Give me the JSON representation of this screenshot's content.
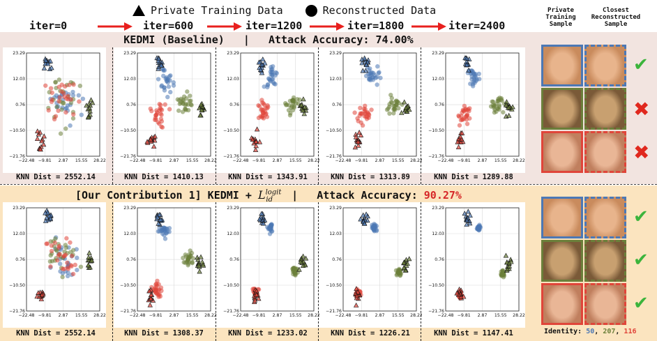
{
  "legend": {
    "private_label": "Private Training Data",
    "recon_label": "Reconstructed Data"
  },
  "iters": [
    "iter=0",
    "iter=600",
    "iter=1200",
    "iter=1800",
    "iter=2400"
  ],
  "right_headers": {
    "private": "Private\nTraining\nSample",
    "closest": "Closest\nReconstructed\nSample"
  },
  "row1": {
    "title_left": "KEDMI (Baseline)",
    "divider": "|",
    "title_right": "Attack Accuracy: 74.00%",
    "knn": [
      "KNN Dist = 2552.14",
      "KNN Dist = 1410.13",
      "KNN Dist = 1343.91",
      "KNN Dist = 1313.89",
      "KNN Dist = 1289.88"
    ],
    "marks": [
      "check",
      "cross",
      "cross"
    ]
  },
  "row2": {
    "title_left": "[Our Contribution 1] KEDMI + ",
    "sym_base": "L",
    "sym_sup": "logit",
    "sym_sub": "id",
    "divider": "|",
    "title_right_label": "Attack Accuracy: ",
    "title_right_value": "90.27%",
    "knn": [
      "KNN Dist = 2552.14",
      "KNN Dist = 1308.37",
      "KNN Dist = 1233.02",
      "KNN Dist = 1226.21",
      "KNN Dist = 1147.41"
    ],
    "marks": [
      "check",
      "check",
      "check"
    ]
  },
  "identity": {
    "label": "Identity: ",
    "ids": [
      "50",
      "207",
      "116"
    ],
    "colors": [
      "#4c78b5",
      "#6b7f3a",
      "#e0453a"
    ]
  },
  "chart_data": {
    "type": "scatter",
    "x_ticks": [
      -22.48,
      -9.81,
      2.87,
      15.55,
      28.22
    ],
    "y_ticks": [
      23.29,
      12.03,
      0.76,
      -10.5,
      -21.76
    ],
    "xlim": [
      -22.48,
      28.22
    ],
    "ylim": [
      -21.76,
      23.29
    ],
    "grid": true,
    "private_clusters": [
      {
        "identity": "50",
        "color": "#4c78b5",
        "center": [
          -7.5,
          18.5
        ]
      },
      {
        "identity": "207",
        "color": "#6b7f3a",
        "center": [
          21.0,
          -1.0
        ]
      },
      {
        "identity": "116",
        "color": "#e0453a",
        "center": [
          -12.5,
          -15.0
        ]
      }
    ],
    "panels": [
      {
        "row": 1,
        "iter": 0,
        "recon_centers": [
          [
            2.87,
            2.0
          ],
          [
            2.87,
            2.0
          ],
          [
            2.87,
            2.0
          ]
        ],
        "spread": 9.0
      },
      {
        "row": 1,
        "iter": 600,
        "recon_centers": [
          [
            -2.5,
            10.5
          ],
          [
            10.5,
            0.76
          ],
          [
            -7.5,
            -3.0
          ]
        ],
        "spread": 5.0
      },
      {
        "row": 1,
        "iter": 1200,
        "recon_centers": [
          [
            -0.5,
            12.0
          ],
          [
            13.5,
            1.5
          ],
          [
            -7.5,
            -2.5
          ]
        ],
        "spread": 4.5
      },
      {
        "row": 1,
        "iter": 1800,
        "recon_centers": [
          [
            -2.0,
            13.5
          ],
          [
            13.0,
            1.0
          ],
          [
            -8.0,
            -3.5
          ]
        ],
        "spread": 4.5
      },
      {
        "row": 1,
        "iter": 2400,
        "recon_centers": [
          [
            -4.0,
            14.0
          ],
          [
            13.0,
            1.0
          ],
          [
            -9.0,
            -4.0
          ]
        ],
        "spread": 4.5
      },
      {
        "row": 2,
        "iter": 0,
        "recon_centers": [
          [
            2.87,
            2.0
          ],
          [
            2.87,
            2.0
          ],
          [
            2.87,
            2.0
          ]
        ],
        "spread": 9.0
      },
      {
        "row": 2,
        "iter": 600,
        "recon_centers": [
          [
            -4.0,
            14.0
          ],
          [
            13.0,
            1.0
          ],
          [
            -9.5,
            -12.0
          ]
        ],
        "spread": 3.5
      },
      {
        "row": 2,
        "iter": 1200,
        "recon_centers": [
          [
            -2.0,
            14.5
          ],
          [
            15.0,
            -4.0
          ],
          [
            -12.0,
            -13.5
          ]
        ],
        "spread": 1.8
      },
      {
        "row": 2,
        "iter": 1800,
        "recon_centers": [
          [
            -1.0,
            14.5
          ],
          [
            16.0,
            -5.0
          ],
          [
            -12.0,
            -14.0
          ]
        ],
        "spread": 1.5
      },
      {
        "row": 2,
        "iter": 2400,
        "recon_centers": [
          [
            0.5,
            14.5
          ],
          [
            17.0,
            -5.5
          ],
          [
            -12.5,
            -15.0
          ]
        ],
        "spread": 1.2
      }
    ]
  }
}
